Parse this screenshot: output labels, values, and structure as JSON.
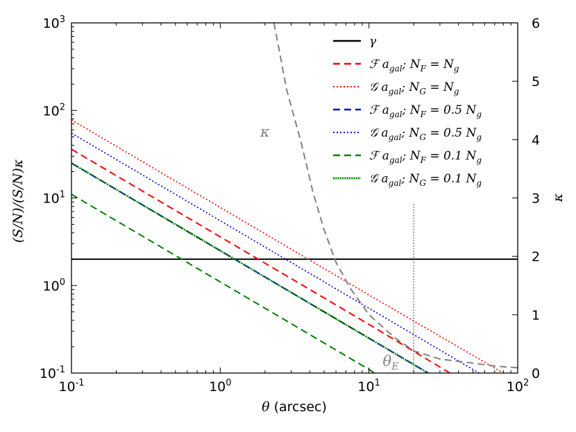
{
  "chart_data": {
    "type": "line",
    "x_scale": "log",
    "y_scale": "log",
    "xlim": [
      0.1,
      100
    ],
    "ylim": [
      0.1,
      1000
    ],
    "y2lim": [
      0,
      6
    ],
    "xlabel": "θ (arcsec)",
    "ylabel": "(S/N)/(S/N)κ",
    "y2label": "κ",
    "x_ticks": [
      {
        "value": 0.1,
        "base": "10",
        "exp": "-1"
      },
      {
        "value": 1,
        "base": "10",
        "exp": "0"
      },
      {
        "value": 10,
        "base": "10",
        "exp": "1"
      },
      {
        "value": 100,
        "base": "10",
        "exp": "2"
      }
    ],
    "y_ticks": [
      {
        "value": 0.1,
        "base": "10",
        "exp": "-1"
      },
      {
        "value": 1,
        "base": "10",
        "exp": "0"
      },
      {
        "value": 10,
        "base": "10",
        "exp": "1"
      },
      {
        "value": 100,
        "base": "10",
        "exp": "2"
      },
      {
        "value": 1000,
        "base": "10",
        "exp": "3"
      }
    ],
    "y2_ticks": [
      "0",
      "1",
      "2",
      "3",
      "4",
      "5",
      "6"
    ],
    "legend_position": "top-right",
    "series": [
      {
        "name": "γ",
        "legend": [
          "γ"
        ],
        "color": "#000000",
        "dash": "solid",
        "axis": "left",
        "x": [
          0.1,
          100
        ],
        "y": [
          2,
          2
        ]
      },
      {
        "name": "F a_gal; N_F = N_g",
        "legend": [
          "ℱ a",
          "gal",
          "; N",
          "F",
          " = N",
          "g"
        ],
        "color": "#ff0000",
        "dash": "dashed",
        "axis": "left",
        "x": [
          0.1,
          1,
          10,
          35
        ],
        "y": [
          36,
          3.6,
          0.36,
          0.1
        ]
      },
      {
        "name": "G a_gal; N_G = N_g",
        "legend": [
          "𝒢 a",
          "gal",
          "; N",
          "G",
          " = N",
          "g"
        ],
        "color": "#ff0000",
        "dash": "dotted",
        "axis": "left",
        "x": [
          0.1,
          1,
          10,
          80
        ],
        "y": [
          78,
          7.8,
          0.78,
          0.1
        ]
      },
      {
        "name": "F a_gal; N_F = 0.5 N_g",
        "legend": [
          "ℱ a",
          "gal",
          "; N",
          "F",
          " = 0.5 N",
          "g"
        ],
        "color": "#0000cc",
        "dash": "dashed",
        "axis": "left",
        "x": [
          0.1,
          1,
          10,
          25
        ],
        "y": [
          25,
          2.5,
          0.25,
          0.1
        ]
      },
      {
        "name": "G a_gal; N_G = 0.5 N_g",
        "legend": [
          "𝒢 a",
          "gal",
          "; N",
          "G",
          " = 0.5 N",
          "g"
        ],
        "color": "#0000cc",
        "dash": "dotted",
        "axis": "left",
        "x": [
          0.1,
          1,
          10,
          55
        ],
        "y": [
          55,
          5.5,
          0.55,
          0.1
        ]
      },
      {
        "name": "F a_gal; N_F = 0.1 N_g",
        "legend": [
          "ℱ a",
          "gal",
          "; N",
          "F",
          " = 0.1 N",
          "g"
        ],
        "color": "#008000",
        "dash": "dashed",
        "axis": "left",
        "x": [
          0.1,
          1,
          10,
          12
        ],
        "y": [
          11,
          1.1,
          0.11,
          0.09
        ]
      },
      {
        "name": "G a_gal; N_G = 0.1 N_g",
        "legend": [
          "𝒢 a",
          "gal",
          "; N",
          "G",
          " = 0.1 N",
          "g"
        ],
        "color": "#008000",
        "dash": "densedot",
        "axis": "left",
        "x": [
          0.1,
          1,
          10,
          25
        ],
        "y": [
          25,
          2.5,
          0.25,
          0.1
        ]
      },
      {
        "name": "κ",
        "legend": null,
        "color": "#808080",
        "dash": "dashed",
        "axis": "right",
        "x": [
          2.3,
          2.8,
          3.5,
          4.2,
          5.0,
          6.0,
          7.5,
          10,
          15,
          20,
          30,
          50,
          70,
          100
        ],
        "y": [
          6.0,
          4.85,
          3.95,
          3.1,
          2.45,
          1.9,
          1.45,
          1.0,
          0.6,
          0.38,
          0.24,
          0.17,
          0.12,
          0.09
        ]
      }
    ],
    "annotations": [
      {
        "text": "κ",
        "x": 2.0,
        "y2": 4.05,
        "color": "#808080"
      },
      {
        "text": "θ",
        "sub": "E",
        "x": 14,
        "y2": 0.12,
        "color": "#808080"
      }
    ],
    "vline": {
      "x": 20,
      "y2_top": 2.9,
      "color": "#808080"
    }
  }
}
